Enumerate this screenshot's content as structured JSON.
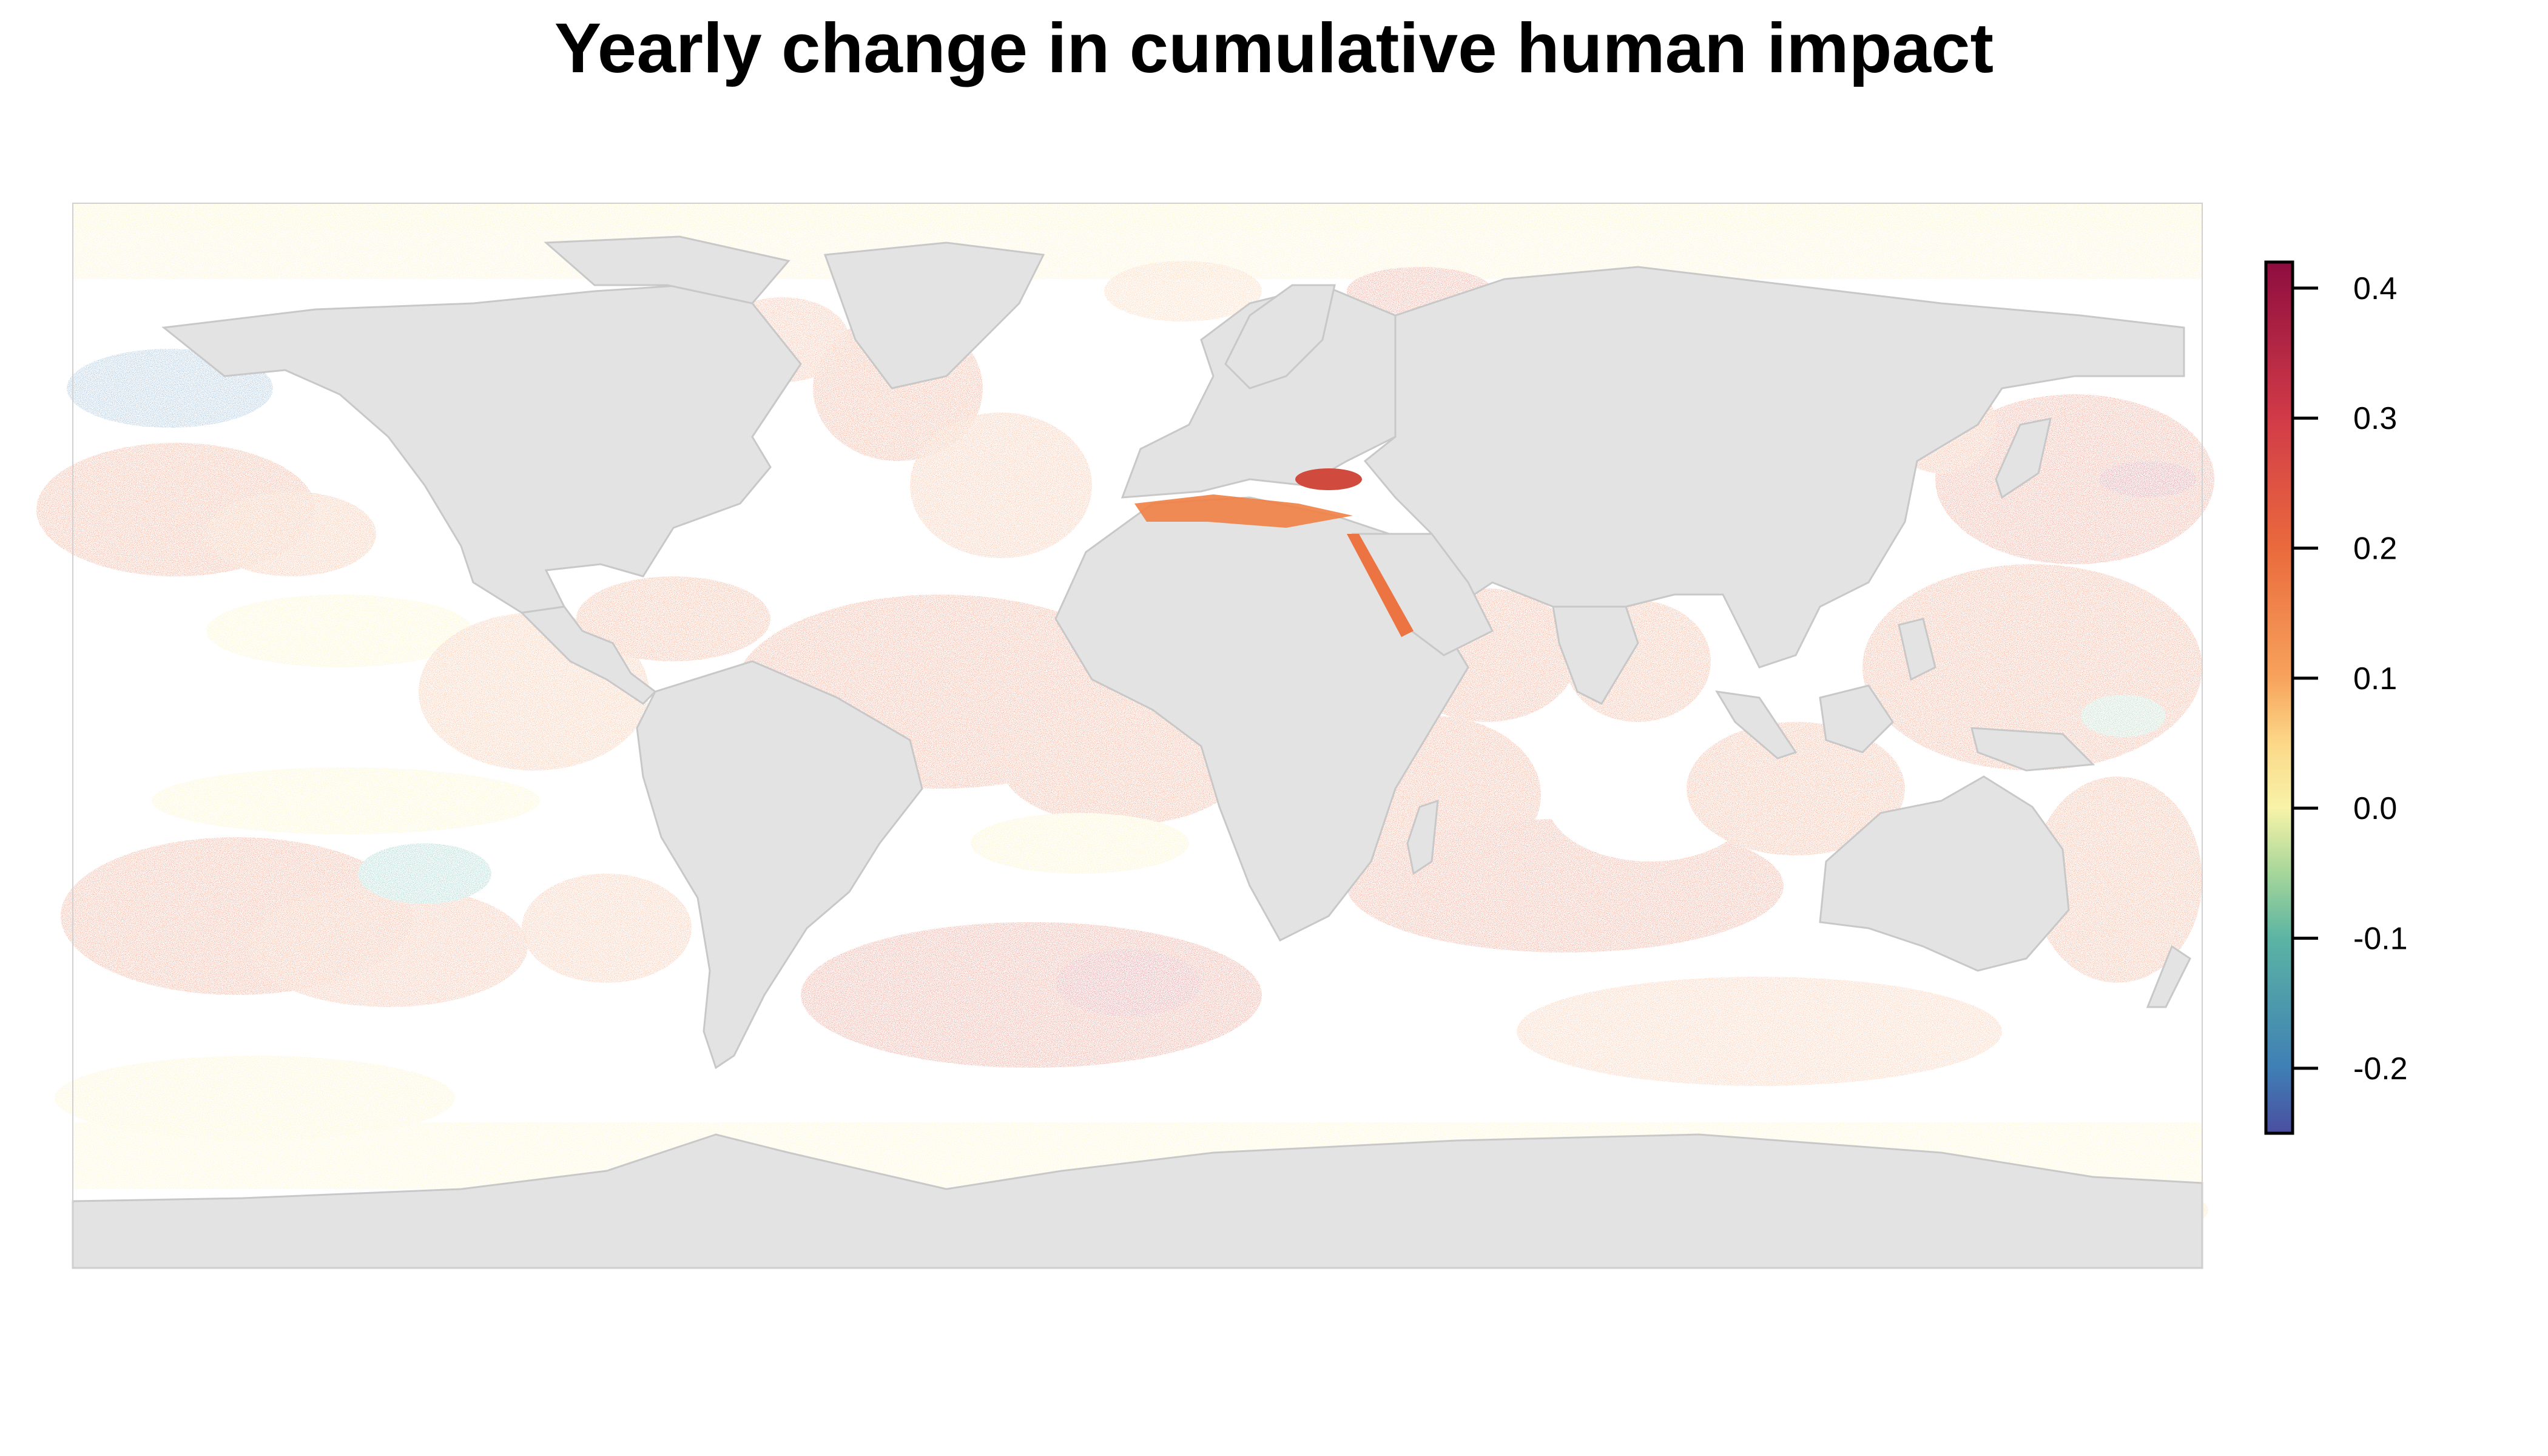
{
  "title": "Yearly change in cumulative human impact",
  "colors": {
    "land": "#e3e3e3",
    "land_border": "#c8c8c8",
    "ocean_no_change": "#ffffff",
    "frame": "#000000"
  },
  "legend": {
    "type": "continuous-colorbar",
    "min": -0.25,
    "max": 0.42,
    "ticks": [
      {
        "value": 0.4,
        "label": "0.4"
      },
      {
        "value": 0.3,
        "label": "0.3"
      },
      {
        "value": 0.2,
        "label": "0.2"
      },
      {
        "value": 0.1,
        "label": "0.1"
      },
      {
        "value": 0.0,
        "label": "0.0"
      },
      {
        "value": -0.1,
        "label": "-0.1"
      },
      {
        "value": -0.2,
        "label": "-0.2"
      }
    ],
    "gradient": [
      {
        "value": -0.25,
        "color": "#4b4ea0"
      },
      {
        "value": -0.2,
        "color": "#3f7fb5"
      },
      {
        "value": -0.1,
        "color": "#5bb4a3"
      },
      {
        "value": -0.05,
        "color": "#a6d69a"
      },
      {
        "value": 0.0,
        "color": "#f7f3a8"
      },
      {
        "value": 0.05,
        "color": "#fcd888"
      },
      {
        "value": 0.1,
        "color": "#f7a35c"
      },
      {
        "value": 0.2,
        "color": "#ea6a3d"
      },
      {
        "value": 0.3,
        "color": "#d13b48"
      },
      {
        "value": 0.42,
        "color": "#8e0d3f"
      }
    ]
  },
  "regions": [
    {
      "name": "north-pacific-west",
      "change": 0.2
    },
    {
      "name": "north-pacific-east-gyre",
      "change": 0.02
    },
    {
      "name": "gulf-of-alaska",
      "change": -0.2
    },
    {
      "name": "tropical-atlantic",
      "change": 0.2
    },
    {
      "name": "indian-ocean",
      "change": 0.2
    },
    {
      "name": "south-pacific",
      "change": 0.2
    },
    {
      "name": "south-atlantic",
      "change": 0.25
    },
    {
      "name": "black-sea",
      "change": 0.3
    },
    {
      "name": "southern-ocean",
      "change": 0.02
    },
    {
      "name": "southeast-pacific",
      "change": -0.1
    }
  ]
}
